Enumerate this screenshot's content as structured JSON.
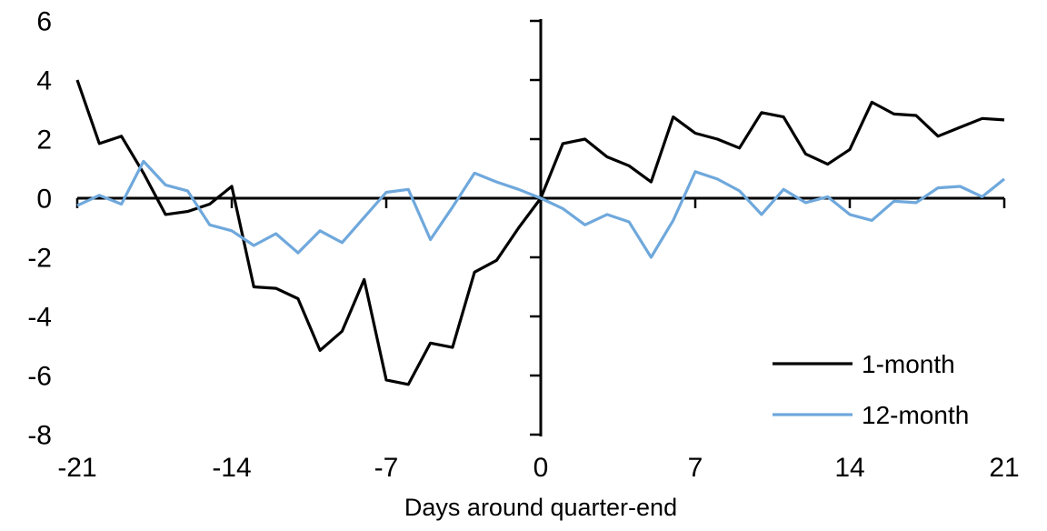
{
  "figure": {
    "xlabel": "Days around quarter-end"
  },
  "legend": {
    "position": "lower-right",
    "items": [
      {
        "label": "1-month",
        "color": "#000000"
      },
      {
        "label": "12-month",
        "color": "#6FA8DC"
      }
    ]
  },
  "chart_data": {
    "type": "line",
    "title": "",
    "xlabel": "Days around quarter-end",
    "ylabel": "",
    "xlim": [
      -21,
      21
    ],
    "ylim": [
      -8,
      6
    ],
    "x_ticks": [
      -21,
      -14,
      -7,
      0,
      7,
      14,
      21
    ],
    "y_ticks": [
      6,
      4,
      2,
      0,
      -2,
      -4,
      -6,
      -8
    ],
    "grid": false,
    "legend_position": "lower right",
    "x": [
      -21,
      -20,
      -19,
      -18,
      -17,
      -16,
      -15,
      -14,
      -13,
      -12,
      -11,
      -10,
      -9,
      -8,
      -7,
      -6,
      -5,
      -4,
      -3,
      -2,
      -1,
      0,
      1,
      2,
      3,
      4,
      5,
      6,
      7,
      8,
      9,
      10,
      11,
      12,
      13,
      14,
      15,
      16,
      17,
      18,
      19,
      20,
      21
    ],
    "series": [
      {
        "name": "1-month",
        "color": "#000000",
        "values": [
          4.0,
          1.85,
          2.1,
          0.85,
          -0.55,
          -0.45,
          -0.2,
          0.4,
          -3.0,
          -3.05,
          -3.4,
          -5.15,
          -4.5,
          -2.75,
          -6.15,
          -6.3,
          -4.9,
          -5.05,
          -2.5,
          -2.1,
          -1.0,
          0.0,
          1.85,
          2.0,
          1.4,
          1.1,
          0.55,
          2.75,
          2.2,
          2.0,
          1.7,
          2.9,
          2.75,
          1.5,
          1.15,
          1.65,
          3.25,
          2.85,
          2.8,
          2.1,
          2.4,
          2.7,
          2.65
        ]
      },
      {
        "name": "12-month",
        "color": "#6FA8DC",
        "values": [
          -0.25,
          0.1,
          -0.2,
          1.25,
          0.45,
          0.25,
          -0.9,
          -1.1,
          -1.6,
          -1.2,
          -1.85,
          -1.1,
          -1.5,
          -0.65,
          0.2,
          0.3,
          -1.4,
          -0.3,
          0.85,
          0.55,
          0.3,
          0.0,
          -0.35,
          -0.9,
          -0.55,
          -0.8,
          -2.0,
          -0.75,
          0.9,
          0.65,
          0.25,
          -0.55,
          0.3,
          -0.15,
          0.05,
          -0.55,
          -0.75,
          -0.1,
          -0.15,
          0.35,
          0.4,
          0.05,
          0.65
        ]
      }
    ]
  }
}
